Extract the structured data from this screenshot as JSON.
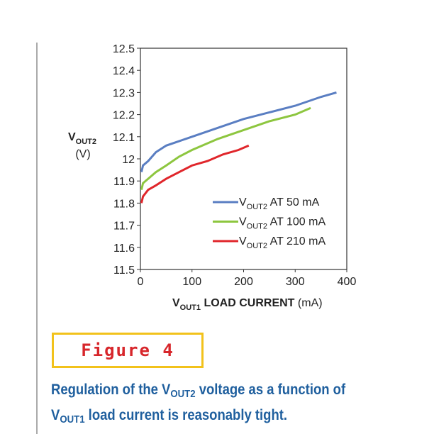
{
  "chart_data": {
    "type": "line",
    "y_label": [
      "V",
      "OUT2"
    ],
    "y_unit": "(V)",
    "x_label": [
      "V",
      "OUT1",
      " LOAD CURRENT ",
      "(mA)"
    ],
    "xlim": [
      0,
      400
    ],
    "xticks": [
      0,
      100,
      200,
      300,
      400
    ],
    "ylim": [
      11.5,
      12.5
    ],
    "yticks": [
      11.5,
      11.6,
      11.7,
      11.8,
      11.9,
      12,
      12.1,
      12.2,
      12.3,
      12.4,
      12.5
    ],
    "series": [
      {
        "name": [
          "V",
          "OUT2",
          " AT 50 mA"
        ],
        "color": "#5a7ec2",
        "x": [
          2,
          5,
          15,
          30,
          50,
          75,
          100,
          150,
          200,
          250,
          300,
          350,
          380
        ],
        "values": [
          11.94,
          11.97,
          11.99,
          12.03,
          12.06,
          12.08,
          12.1,
          12.14,
          12.18,
          12.21,
          12.24,
          12.28,
          12.3
        ]
      },
      {
        "name": [
          "V",
          "OUT2",
          " AT 100 mA"
        ],
        "color": "#8dc63f",
        "x": [
          2,
          5,
          15,
          30,
          50,
          75,
          100,
          150,
          200,
          250,
          300,
          330
        ],
        "values": [
          11.86,
          11.89,
          11.91,
          11.94,
          11.97,
          12.01,
          12.04,
          12.09,
          12.13,
          12.17,
          12.2,
          12.23
        ]
      },
      {
        "name": [
          "V",
          "OUT2",
          " AT 210 mA"
        ],
        "color": "#e0262b",
        "x": [
          2,
          5,
          15,
          30,
          50,
          75,
          100,
          130,
          160,
          190,
          210
        ],
        "values": [
          11.8,
          11.83,
          11.86,
          11.88,
          11.91,
          11.94,
          11.97,
          11.99,
          12.02,
          12.04,
          12.06
        ]
      }
    ]
  },
  "figure_label": "Figure 4",
  "caption": [
    "Regulation of the V",
    "OUT2",
    " voltage as a function of V",
    "OUT1",
    " load current is reasonably tight."
  ]
}
